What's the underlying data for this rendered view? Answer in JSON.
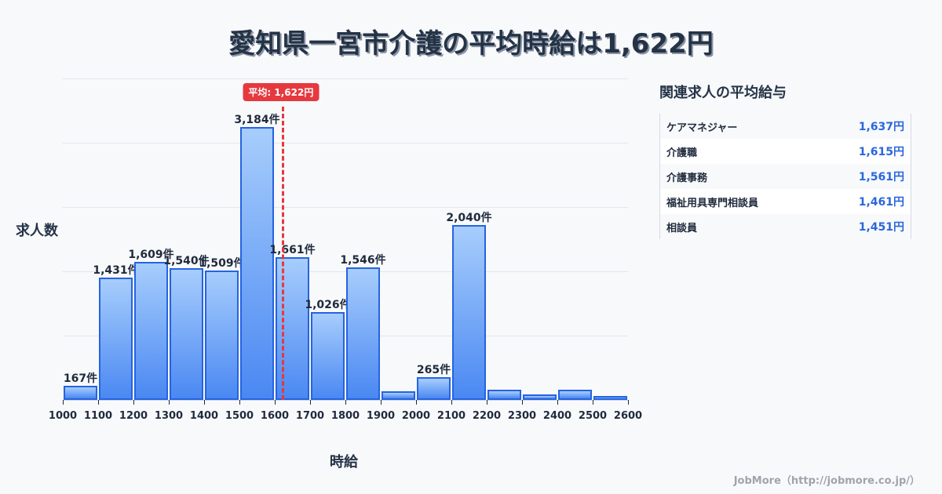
{
  "title": "愛知県一宮市介護の平均時給は1,622円",
  "chart_data": {
    "type": "bar",
    "title": "愛知県一宮市介護の平均時給は1,622円",
    "xlabel": "時給",
    "ylabel": "求人数",
    "x_ticks": [
      "1000",
      "1100",
      "1200",
      "1300",
      "1400",
      "1500",
      "1600",
      "1700",
      "1800",
      "1900",
      "2000",
      "2100",
      "2200",
      "2300",
      "2400",
      "2500",
      "2600"
    ],
    "categories": [
      "1000-1100",
      "1100-1200",
      "1200-1300",
      "1300-1400",
      "1400-1500",
      "1500-1600",
      "1600-1700",
      "1700-1800",
      "1800-1900",
      "1900-2000",
      "2000-2100",
      "2100-2200",
      "2200-2300",
      "2300-2400",
      "2400-2500",
      "2500-2600"
    ],
    "values": [
      167,
      1431,
      1609,
      1540,
      1509,
      3184,
      1661,
      1026,
      1546,
      100,
      265,
      2040,
      119,
      64,
      119,
      46
    ],
    "labels": [
      "167件",
      "1,431件",
      "1,609件",
      "1,540件",
      "1,509件",
      "3,184件",
      "1,661件",
      "1,026件",
      "1,546件",
      "",
      "265件",
      "2,040件",
      "",
      "",
      "",
      ""
    ],
    "ylim": [
      0,
      3750
    ],
    "xlim": [
      1000,
      2600
    ],
    "grid": true,
    "mean": 1622,
    "mean_label": "平均: 1,622円"
  },
  "axis": {
    "ylabel": "求人数",
    "xlabel": "時給"
  },
  "related": {
    "title": "関連求人の平均給与",
    "items": [
      {
        "name": "ケアマネジャー",
        "value": "1,637円"
      },
      {
        "name": "介護職",
        "value": "1,615円"
      },
      {
        "name": "介護事務",
        "value": "1,561円"
      },
      {
        "name": "福祉用具専門相談員",
        "value": "1,461円"
      },
      {
        "name": "相談員",
        "value": "1,451円"
      }
    ]
  },
  "footer": "JobMore（http://jobmore.co.jp/）",
  "colors": {
    "bar_border": "#2563e0",
    "bar_top": "#a7cdfc",
    "bar_bottom": "#4a88f2",
    "mean": "#e5393f",
    "value_text": "#2a66dd"
  }
}
